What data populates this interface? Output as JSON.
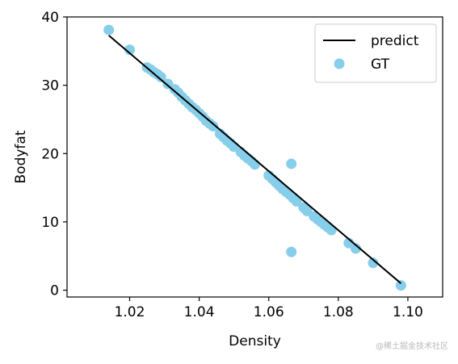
{
  "chart_data": {
    "type": "scatter",
    "title": "",
    "xlabel": "Density",
    "ylabel": "Bodyfat",
    "xlim": [
      1.002,
      1.11
    ],
    "ylim": [
      -1,
      40
    ],
    "xticks": [
      1.02,
      1.04,
      1.06,
      1.08,
      1.1
    ],
    "xtick_labels": [
      "1.02",
      "1.04",
      "1.06",
      "1.08",
      "1.10"
    ],
    "yticks": [
      0,
      10,
      20,
      30,
      40
    ],
    "ytick_labels": [
      "0",
      "10",
      "20",
      "30",
      "40"
    ],
    "grid": false,
    "legend_position": "top-right",
    "series": [
      {
        "name": "predict",
        "kind": "line",
        "color": "#000000",
        "points": [
          [
            1.014,
            37.3
          ],
          [
            1.098,
            1.0
          ]
        ]
      },
      {
        "name": "GT",
        "kind": "scatter",
        "color": "#87ceeb",
        "points": [
          [
            1.014,
            38.1
          ],
          [
            1.02,
            35.2
          ],
          [
            1.025,
            32.6
          ],
          [
            1.026,
            32.3
          ],
          [
            1.027,
            31.9
          ],
          [
            1.028,
            31.6
          ],
          [
            1.029,
            31.2
          ],
          [
            1.031,
            30.2
          ],
          [
            1.033,
            29.4
          ],
          [
            1.034,
            28.9
          ],
          [
            1.035,
            28.3
          ],
          [
            1.036,
            27.8
          ],
          [
            1.037,
            27.3
          ],
          [
            1.038,
            26.8
          ],
          [
            1.039,
            26.4
          ],
          [
            1.04,
            25.9
          ],
          [
            1.041,
            25.4
          ],
          [
            1.042,
            24.8
          ],
          [
            1.043,
            24.4
          ],
          [
            1.044,
            24.0
          ],
          [
            1.046,
            22.9
          ],
          [
            1.047,
            22.4
          ],
          [
            1.048,
            21.9
          ],
          [
            1.049,
            21.5
          ],
          [
            1.05,
            21.0
          ],
          [
            1.052,
            20.2
          ],
          [
            1.053,
            19.7
          ],
          [
            1.054,
            19.3
          ],
          [
            1.055,
            18.9
          ],
          [
            1.056,
            18.4
          ],
          [
            1.06,
            16.8
          ],
          [
            1.061,
            16.3
          ],
          [
            1.062,
            15.8
          ],
          [
            1.063,
            15.3
          ],
          [
            1.064,
            14.8
          ],
          [
            1.065,
            14.4
          ],
          [
            1.066,
            14.0
          ],
          [
            1.067,
            13.5
          ],
          [
            1.068,
            13.0
          ],
          [
            1.07,
            12.1
          ],
          [
            1.071,
            11.6
          ],
          [
            1.073,
            10.8
          ],
          [
            1.074,
            10.4
          ],
          [
            1.075,
            10.0
          ],
          [
            1.076,
            9.6
          ],
          [
            1.077,
            9.2
          ],
          [
            1.078,
            8.8
          ],
          [
            1.083,
            6.9
          ],
          [
            1.085,
            6.1
          ],
          [
            1.09,
            4.0
          ],
          [
            1.098,
            0.7
          ],
          [
            1.0665,
            18.5
          ],
          [
            1.0665,
            5.6
          ]
        ]
      }
    ],
    "annotations": []
  },
  "watermark": "@稀土掘金技术社区"
}
